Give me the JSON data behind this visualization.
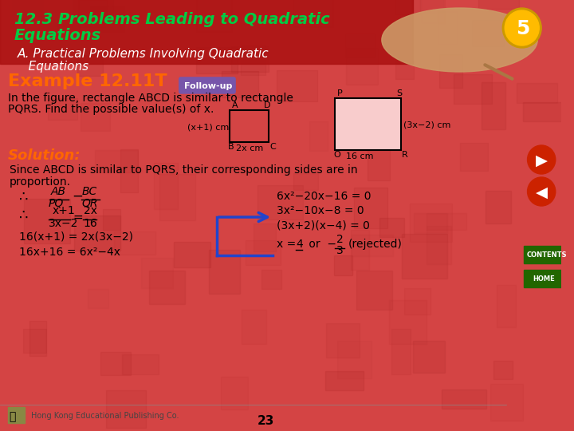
{
  "bg_color": "#d44444",
  "title_line1": "12.3 Problems Leading to Quadratic",
  "title_line2": "Equations",
  "subtitle": "A. Practical Problems Involving Quadratic\n   Equations",
  "example_label": "Example 12.11T",
  "followup_label": "Follow-up",
  "problem_text_line1": "In the figure, rectangle ABCD is similar to rectangle",
  "problem_text_line2": "PQRS. Find the possible value(s) of x.",
  "solution_label": "Solution:",
  "sol_line1": "Since ABCD is similar to PQRS, their corresponding sides are in",
  "sol_line2": "proportion.",
  "therefore1_left": "AB   BC",
  "therefore1_right": "PQ   QR",
  "frac_eq": "x+1  =  2x",
  "frac_eq2": "3x−2    16",
  "step1": "16(x+1) = 2x(3x−2)",
  "step2": "16x+16 = 6x²−4x",
  "rhs_eq1": "6x²−20x−16 = 0",
  "rhs_eq2": "3x²−10x−8 = 0",
  "rhs_eq3": "(3x+2)(x−4) = 0",
  "rhs_eq4": "x = 4  or  −2/3 (rejected)",
  "footer_left": "Hong Kong Educational Publishing Co.",
  "page_num": "23",
  "title_color": "#00cc44",
  "subtitle_color": "#ffffff",
  "example_color": "#ff6600",
  "solution_color": "#ff6600",
  "body_color": "#000000",
  "followup_bg": "#8866aa",
  "slide_number": "5",
  "nav_arrow_color": "#cc2200",
  "contents_color": "#226600",
  "home_color": "#226600"
}
